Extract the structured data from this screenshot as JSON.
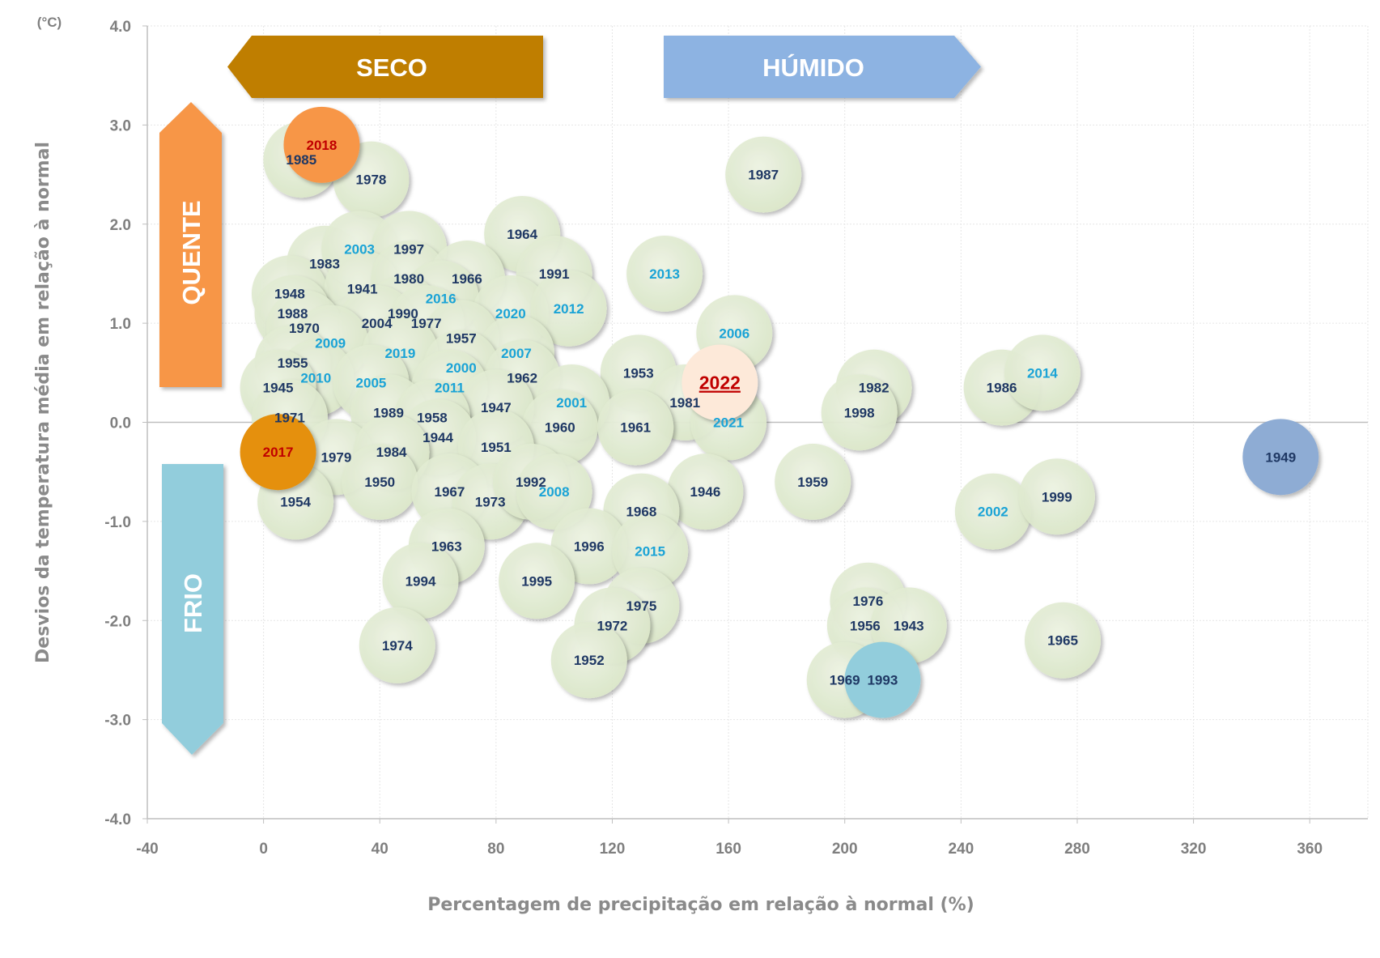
{
  "chart_data": {
    "type": "scatter",
    "xlabel": "Percentagem de precipitação em relação à normal (%)",
    "ylabel": "Desvios da temperatura média em relação à normal",
    "y_unit": "(°C)",
    "xlim": [
      -40,
      380
    ],
    "ylim": [
      -4.0,
      4.0
    ],
    "x_ticks": [
      "-40",
      "0",
      "40",
      "80",
      "120",
      "160",
      "200",
      "240",
      "280",
      "320",
      "360"
    ],
    "y_ticks": [
      "4.0",
      "3.0",
      "2.0",
      "1.0",
      "0.0",
      "-1.0",
      "-2.0",
      "-3.0",
      "-4.0"
    ],
    "grid": true,
    "regions": {
      "dry": "SECO",
      "wet": "HÚMIDO",
      "hot": "QUENTE",
      "cold": "FRIO"
    },
    "colors": {
      "bubble": "#e2ecd3",
      "label_dark": "#1f3864",
      "label_light": "#1aa3d6",
      "label_red": "#c00000",
      "dry_arrow": "#bf7e00",
      "wet_arrow": "#8db3e2",
      "hot_arrow": "#f79646",
      "cold_arrow": "#92cddc",
      "zero_line": "#bfbfbf"
    },
    "points": [
      {
        "year": "2018",
        "x": 20,
        "y": 2.8,
        "fill": "#f79646",
        "label": "red"
      },
      {
        "year": "1985",
        "x": 13,
        "y": 2.65,
        "label": "dark"
      },
      {
        "year": "1978",
        "x": 37,
        "y": 2.45,
        "label": "dark"
      },
      {
        "year": "1987",
        "x": 172,
        "y": 2.5,
        "label": "dark"
      },
      {
        "year": "1964",
        "x": 89,
        "y": 1.9,
        "label": "dark"
      },
      {
        "year": "2013",
        "x": 138,
        "y": 1.5,
        "label": "light"
      },
      {
        "year": "1983",
        "x": 21,
        "y": 1.6,
        "label": "dark"
      },
      {
        "year": "2003",
        "x": 33,
        "y": 1.75,
        "label": "light"
      },
      {
        "year": "1997",
        "x": 50,
        "y": 1.75,
        "label": "dark"
      },
      {
        "year": "1948",
        "x": 9,
        "y": 1.3,
        "label": "dark"
      },
      {
        "year": "1941",
        "x": 34,
        "y": 1.35,
        "label": "dark"
      },
      {
        "year": "1980",
        "x": 50,
        "y": 1.45,
        "label": "dark"
      },
      {
        "year": "1966",
        "x": 70,
        "y": 1.45,
        "label": "dark"
      },
      {
        "year": "2016",
        "x": 61,
        "y": 1.25,
        "label": "light"
      },
      {
        "year": "1991",
        "x": 100,
        "y": 1.5,
        "label": "dark"
      },
      {
        "year": "1988",
        "x": 10,
        "y": 1.1,
        "label": "dark"
      },
      {
        "year": "1990",
        "x": 48,
        "y": 1.1,
        "label": "dark"
      },
      {
        "year": "2020",
        "x": 85,
        "y": 1.1,
        "label": "light"
      },
      {
        "year": "2012",
        "x": 105,
        "y": 1.15,
        "label": "light"
      },
      {
        "year": "1970",
        "x": 14,
        "y": 0.95,
        "label": "dark"
      },
      {
        "year": "2004",
        "x": 39,
        "y": 1.0,
        "label": "dark"
      },
      {
        "year": "1977",
        "x": 56,
        "y": 1.0,
        "label": "dark"
      },
      {
        "year": "2006",
        "x": 162,
        "y": 0.9,
        "label": "light"
      },
      {
        "year": "2009",
        "x": 23,
        "y": 0.8,
        "label": "light"
      },
      {
        "year": "1957",
        "x": 68,
        "y": 0.85,
        "label": "dark"
      },
      {
        "year": "2019",
        "x": 47,
        "y": 0.7,
        "label": "light"
      },
      {
        "year": "2007",
        "x": 87,
        "y": 0.7,
        "label": "light"
      },
      {
        "year": "1955",
        "x": 10,
        "y": 0.6,
        "label": "dark"
      },
      {
        "year": "2000",
        "x": 68,
        "y": 0.55,
        "label": "light"
      },
      {
        "year": "1962",
        "x": 89,
        "y": 0.45,
        "label": "dark"
      },
      {
        "year": "1953",
        "x": 129,
        "y": 0.5,
        "label": "dark"
      },
      {
        "year": "1982",
        "x": 210,
        "y": 0.35,
        "label": "dark"
      },
      {
        "year": "1986",
        "x": 254,
        "y": 0.35,
        "label": "dark"
      },
      {
        "year": "2014",
        "x": 268,
        "y": 0.5,
        "label": "light"
      },
      {
        "year": "2010",
        "x": 18,
        "y": 0.45,
        "label": "light"
      },
      {
        "year": "1945",
        "x": 5,
        "y": 0.35,
        "label": "dark"
      },
      {
        "year": "2005",
        "x": 37,
        "y": 0.4,
        "label": "light"
      },
      {
        "year": "2011",
        "x": 64,
        "y": 0.35,
        "label": "light"
      },
      {
        "year": "2022",
        "x": 157,
        "y": 0.4,
        "fill": "#fde9d9",
        "label": "red",
        "highlight": true
      },
      {
        "year": "2001",
        "x": 106,
        "y": 0.2,
        "label": "light"
      },
      {
        "year": "1981",
        "x": 145,
        "y": 0.2,
        "label": "dark"
      },
      {
        "year": "1947",
        "x": 80,
        "y": 0.15,
        "label": "dark"
      },
      {
        "year": "1989",
        "x": 43,
        "y": 0.1,
        "label": "dark"
      },
      {
        "year": "1971",
        "x": 9,
        "y": 0.05,
        "label": "dark"
      },
      {
        "year": "1958",
        "x": 58,
        "y": 0.05,
        "label": "dark"
      },
      {
        "year": "1998",
        "x": 205,
        "y": 0.1,
        "label": "dark"
      },
      {
        "year": "2021",
        "x": 160,
        "y": 0.0,
        "label": "light"
      },
      {
        "year": "1960",
        "x": 102,
        "y": -0.05,
        "label": "dark"
      },
      {
        "year": "1961",
        "x": 128,
        "y": -0.05,
        "label": "dark"
      },
      {
        "year": "1944",
        "x": 60,
        "y": -0.15,
        "label": "dark"
      },
      {
        "year": "2017",
        "x": 5,
        "y": -0.3,
        "fill": "#e5900a",
        "label": "red"
      },
      {
        "year": "1979",
        "x": 25,
        "y": -0.35,
        "label": "dark"
      },
      {
        "year": "1984",
        "x": 44,
        "y": -0.3,
        "label": "dark"
      },
      {
        "year": "1951",
        "x": 80,
        "y": -0.25,
        "label": "dark"
      },
      {
        "year": "1949",
        "x": 350,
        "y": -0.35,
        "fill": "#8eacd4",
        "label": "dark"
      },
      {
        "year": "1954",
        "x": 11,
        "y": -0.8,
        "label": "dark"
      },
      {
        "year": "1950",
        "x": 40,
        "y": -0.6,
        "label": "dark"
      },
      {
        "year": "1967",
        "x": 64,
        "y": -0.7,
        "label": "dark"
      },
      {
        "year": "1973",
        "x": 78,
        "y": -0.8,
        "label": "dark"
      },
      {
        "year": "1992",
        "x": 92,
        "y": -0.6,
        "label": "dark"
      },
      {
        "year": "2008",
        "x": 100,
        "y": -0.7,
        "label": "light"
      },
      {
        "year": "1946",
        "x": 152,
        "y": -0.7,
        "label": "dark"
      },
      {
        "year": "1959",
        "x": 189,
        "y": -0.6,
        "label": "dark"
      },
      {
        "year": "2002",
        "x": 251,
        "y": -0.9,
        "label": "light"
      },
      {
        "year": "1999",
        "x": 273,
        "y": -0.75,
        "label": "dark"
      },
      {
        "year": "1968",
        "x": 130,
        "y": -0.9,
        "label": "dark"
      },
      {
        "year": "1963",
        "x": 63,
        "y": -1.25,
        "label": "dark"
      },
      {
        "year": "1996",
        "x": 112,
        "y": -1.25,
        "label": "dark"
      },
      {
        "year": "2015",
        "x": 133,
        "y": -1.3,
        "label": "light"
      },
      {
        "year": "1994",
        "x": 54,
        "y": -1.6,
        "label": "dark"
      },
      {
        "year": "1995",
        "x": 94,
        "y": -1.6,
        "label": "dark"
      },
      {
        "year": "1975",
        "x": 130,
        "y": -1.85,
        "label": "dark"
      },
      {
        "year": "1976",
        "x": 208,
        "y": -1.8,
        "label": "dark"
      },
      {
        "year": "1972",
        "x": 120,
        "y": -2.05,
        "label": "dark"
      },
      {
        "year": "1956",
        "x": 207,
        "y": -2.05,
        "label": "dark"
      },
      {
        "year": "1943",
        "x": 222,
        "y": -2.05,
        "label": "dark"
      },
      {
        "year": "1965",
        "x": 275,
        "y": -2.2,
        "label": "dark"
      },
      {
        "year": "1974",
        "x": 46,
        "y": -2.25,
        "label": "dark"
      },
      {
        "year": "1952",
        "x": 112,
        "y": -2.4,
        "label": "dark"
      },
      {
        "year": "1969",
        "x": 200,
        "y": -2.6,
        "label": "dark"
      },
      {
        "year": "1993",
        "x": 213,
        "y": -2.6,
        "fill": "#92cddc",
        "label": "dark"
      }
    ]
  }
}
